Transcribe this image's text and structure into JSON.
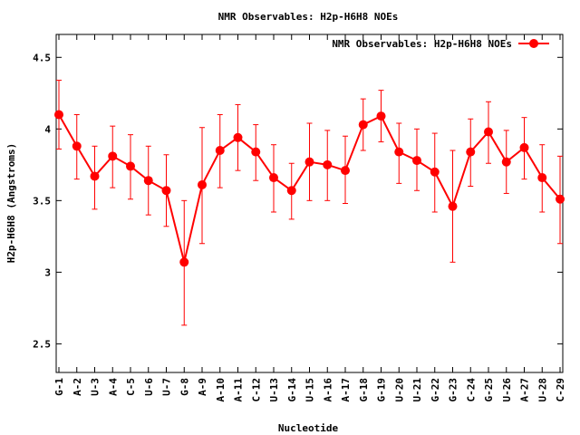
{
  "chart_data": {
    "type": "line",
    "title": "NMR Observables: H2p-H6H8 NOEs",
    "xlabel": "Nucleotide",
    "ylabel": "H2p-H6H8 (Angstroms)",
    "ylim": [
      2.3,
      4.66
    ],
    "yticks": [
      2.5,
      3,
      3.5,
      4,
      4.5
    ],
    "ytick_labels": [
      "2.5",
      "3",
      "3.5",
      "4",
      "4.5"
    ],
    "grid": false,
    "legend": "top-right",
    "categories": [
      "G-1",
      "A-2",
      "U-3",
      "A-4",
      "C-5",
      "U-6",
      "U-7",
      "G-8",
      "A-9",
      "A-10",
      "A-11",
      "C-12",
      "U-13",
      "G-14",
      "U-15",
      "A-16",
      "A-17",
      "G-18",
      "G-19",
      "U-20",
      "U-21",
      "G-22",
      "G-23",
      "C-24",
      "G-25",
      "U-26",
      "A-27",
      "U-28",
      "C-29"
    ],
    "series": [
      {
        "name": "NMR Observables: H2p-H6H8 NOEs",
        "color": "#ff0000",
        "values": [
          4.1,
          3.88,
          3.67,
          3.81,
          3.74,
          3.64,
          3.57,
          3.07,
          3.61,
          3.85,
          3.94,
          3.84,
          3.66,
          3.57,
          3.77,
          3.75,
          3.71,
          4.03,
          4.09,
          3.84,
          3.78,
          3.7,
          3.46,
          3.84,
          3.98,
          3.77,
          3.87,
          3.66,
          3.51
        ],
        "err_low": [
          3.86,
          3.65,
          3.44,
          3.59,
          3.51,
          3.4,
          3.32,
          2.63,
          3.2,
          3.59,
          3.71,
          3.64,
          3.42,
          3.37,
          3.5,
          3.5,
          3.48,
          3.85,
          3.91,
          3.62,
          3.57,
          3.42,
          3.07,
          3.6,
          3.76,
          3.55,
          3.65,
          3.42,
          3.2
        ],
        "err_high": [
          4.34,
          4.1,
          3.88,
          4.02,
          3.96,
          3.88,
          3.82,
          3.5,
          4.01,
          4.1,
          4.17,
          4.03,
          3.89,
          3.76,
          4.04,
          3.99,
          3.95,
          4.21,
          4.27,
          4.04,
          4.0,
          3.97,
          3.85,
          4.07,
          4.19,
          3.99,
          4.08,
          3.89,
          3.81
        ]
      }
    ]
  }
}
